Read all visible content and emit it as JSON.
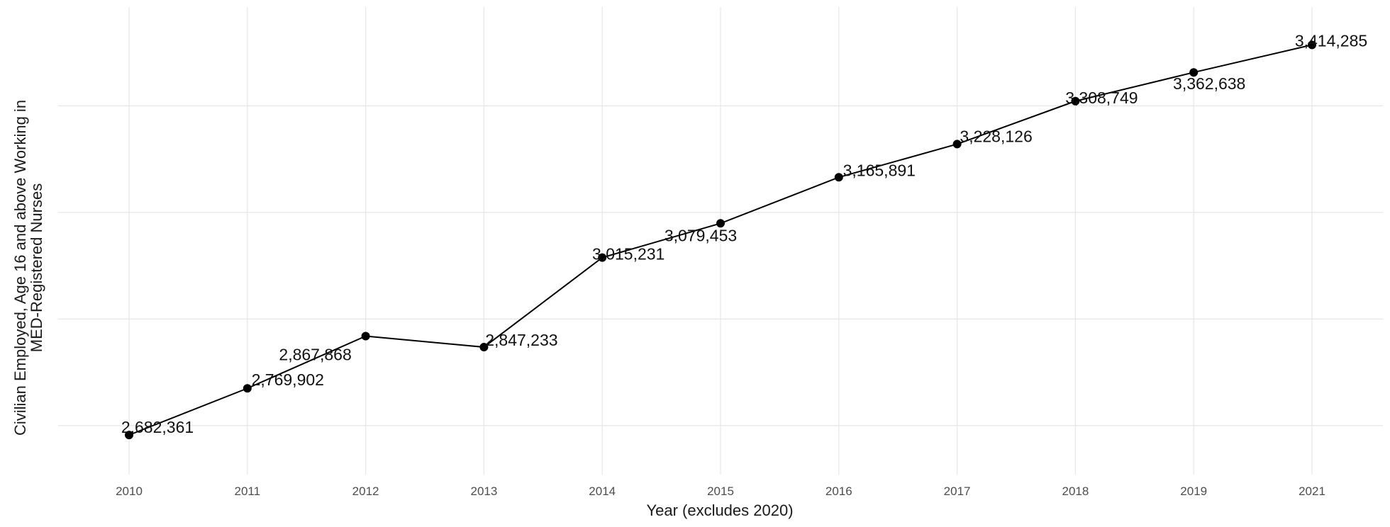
{
  "chart_data": {
    "type": "line",
    "title": "",
    "xlabel": "Year (excludes 2020)",
    "ylabel_lines": [
      "Civilian Employed, Age 16 and above Working in",
      "MED-Registered Nurses"
    ],
    "categories": [
      "2010",
      "2011",
      "2012",
      "2013",
      "2014",
      "2015",
      "2016",
      "2017",
      "2018",
      "2019",
      "2021"
    ],
    "series": [
      {
        "values": [
          2682361,
          2769902,
          2867868,
          2847233,
          3015231,
          3079453,
          3165891,
          3228126,
          3308749,
          3362638,
          3414285
        ],
        "labels": [
          "2,682,361",
          "2,769,902",
          "2,867,868",
          "2,847,233",
          "3,015,231",
          "3,079,453",
          "3,165,891",
          "3,228,126",
          "3,308,749",
          "3,362,638",
          "3,414,285"
        ]
      }
    ],
    "ylim": [
      2640000,
      3440000
    ],
    "y_gridlines": [
      2700000,
      2900000,
      3100000,
      3300000
    ],
    "y_tick_labels_shown": false,
    "grid": true,
    "colors": {
      "line": "#000000",
      "point": "#000000",
      "grid": "#e6e6e6"
    }
  }
}
